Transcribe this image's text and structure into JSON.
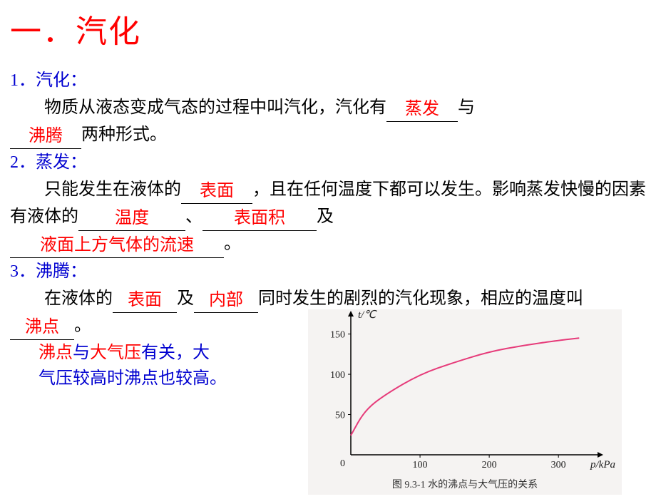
{
  "title": "一．汽化",
  "s1": {
    "head": "1．汽化：",
    "pre": "物质从液态变成气态的过程中叫汽化，汽化有",
    "ans1": "蒸发",
    "mid1": "与",
    "ans2": "沸腾",
    "post": "两种形式。"
  },
  "s2": {
    "head": "2．蒸发：",
    "pre": "只能发生在液体的",
    "ans1": "表面",
    "mid1": "，且在任何温度下都可以发生。影响蒸发快慢的因素有液体的",
    "ans2": "温度",
    "sep": "、",
    "ans3": "表面积",
    "mid2": "及",
    "ans4": "液面上方气体的流速",
    "post": "。"
  },
  "s3": {
    "head": "3．沸腾：",
    "pre": "在液体的",
    "ans1": "表面",
    "mid1": "及",
    "ans2": "内部",
    "mid2": "同时发生的剧烈的汽化现象，相应的温度叫",
    "ans3": "沸点",
    "post": "。"
  },
  "note": {
    "p1a": "沸点",
    "p1b": "与",
    "p1c": "大气压",
    "p1d": "有关，大",
    "p2": "气压较高时沸点也较高。"
  },
  "chart": {
    "type": "line",
    "caption": "图 9.3-1  水的沸点与大气压的关系",
    "xlabel": "p/kPa",
    "ylabel": "t/℃",
    "xlim": [
      0,
      340
    ],
    "ylim": [
      0,
      170
    ],
    "xticks": [
      0,
      100,
      200,
      300
    ],
    "yticks": [
      50,
      100,
      150
    ],
    "background_color": "#f5f3f2",
    "axis_color": "#000000",
    "line_color": "#e63b7a",
    "line_width": 2,
    "points_x": [
      0,
      20,
      50,
      100,
      150,
      200,
      250,
      300,
      330
    ],
    "points_y": [
      24,
      55,
      75,
      100,
      115,
      128,
      136,
      142,
      145
    ]
  },
  "style": {
    "title_color": "#ff0000",
    "head_color": "#0000d0",
    "answer_color": "#ff0000",
    "body_color": "#000000",
    "blank_widths": {
      "w90": 90,
      "w80": 80,
      "w140": 140,
      "w160": 160,
      "w300": 300,
      "w70": 70
    }
  }
}
